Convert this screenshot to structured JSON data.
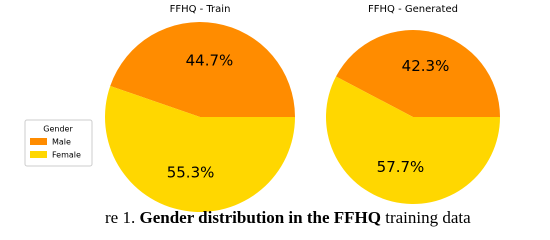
{
  "chart_data": [
    {
      "type": "pie",
      "title": "FFHQ - Train",
      "categories": [
        "Male",
        "Female"
      ],
      "values": [
        44.7,
        55.3
      ],
      "value_labels": [
        "44.7%",
        "55.3%"
      ],
      "colors": [
        "#ff8c00",
        "#ffd700"
      ],
      "legend_title": "Gender",
      "legend": "left"
    },
    {
      "type": "pie",
      "title": "FFHQ - Generated",
      "categories": [
        "Male",
        "Female"
      ],
      "values": [
        42.3,
        57.7
      ],
      "value_labels": [
        "42.3%",
        "57.7%"
      ],
      "colors": [
        "#ff8c00",
        "#ffd700"
      ]
    }
  ],
  "caption": {
    "prefix": "re 1.",
    "bold": "Gender distribution in the FFHQ",
    "rest": "training data"
  }
}
